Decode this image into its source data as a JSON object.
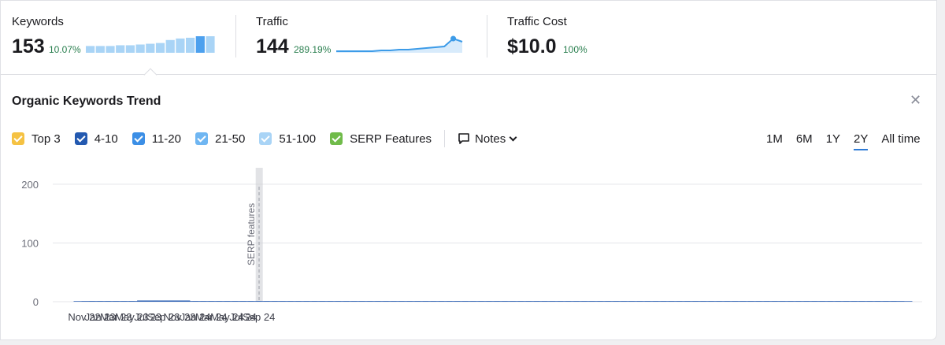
{
  "summary": {
    "keywords": {
      "label": "Keywords",
      "value": "153",
      "change": "10.07%",
      "spark": [
        9,
        9,
        9,
        10,
        10,
        11,
        12,
        13,
        17,
        19,
        20,
        22,
        22
      ]
    },
    "traffic": {
      "label": "Traffic",
      "value": "144",
      "change": "289.19%",
      "spark": [
        2,
        2,
        2,
        2,
        2,
        3,
        3,
        4,
        4,
        5,
        6,
        7,
        8,
        18,
        14
      ]
    },
    "traffic_cost": {
      "label": "Traffic Cost",
      "value": "$10.0",
      "change": "100%"
    }
  },
  "panel": {
    "title": "Organic Keywords Trend",
    "close_icon": "close-icon"
  },
  "filters": [
    {
      "label": "Top 3",
      "color": "#f5c243"
    },
    {
      "label": "4-10",
      "color": "#2359b0"
    },
    {
      "label": "11-20",
      "color": "#3c8fe6"
    },
    {
      "label": "21-50",
      "color": "#6fb6f2"
    },
    {
      "label": "51-100",
      "color": "#a9d4f6"
    },
    {
      "label": "SERP Features",
      "color": "#70bb4a"
    }
  ],
  "notes_label": "Notes",
  "ranges": [
    "1M",
    "6M",
    "1Y",
    "2Y",
    "All time"
  ],
  "active_range": "2Y",
  "chart_data": {
    "type": "bar",
    "stacked": true,
    "ylim": [
      0,
      220
    ],
    "yticks": [
      0,
      100,
      200
    ],
    "xtick_labels": [
      "Nov 22",
      "Jan 23",
      "Mar 23",
      "May 23",
      "Jul 23",
      "Sep 23",
      "Nov 23",
      "Jan 24",
      "Mar 24",
      "May 24",
      "Jul 24",
      "Sep 24"
    ],
    "annotation": "SERP features",
    "series": [
      {
        "name": "Top 3",
        "color": "#f5c243",
        "values": [
          0,
          0,
          0,
          0,
          0,
          0,
          0,
          0,
          0,
          0,
          0,
          0,
          0,
          0,
          0,
          0,
          0,
          0,
          0,
          0,
          0,
          0,
          0,
          0,
          0,
          0,
          0,
          0,
          0,
          0,
          0,
          0,
          0,
          0,
          0,
          0,
          0,
          0,
          0,
          0,
          0,
          0,
          0,
          0,
          0,
          0,
          0,
          0,
          0,
          0,
          0,
          0,
          0,
          0,
          0,
          0,
          0,
          0,
          0,
          0,
          0,
          0,
          0,
          0,
          0,
          0,
          0,
          0,
          0,
          0,
          0,
          0,
          0,
          0,
          0,
          0,
          0,
          0,
          0,
          0,
          0,
          0,
          0,
          0,
          0,
          0,
          0,
          0,
          0,
          0,
          0,
          0,
          0,
          0,
          0,
          0,
          0,
          0,
          0,
          0,
          0,
          0,
          0,
          0
        ]
      },
      {
        "name": "4-10",
        "color": "#2359b0",
        "values": [
          1,
          1,
          1,
          1,
          1,
          1,
          1,
          1,
          2,
          1,
          2,
          1,
          2,
          1,
          1,
          1,
          1,
          1,
          1,
          1,
          1,
          1,
          1,
          1,
          1,
          1,
          1,
          1,
          1,
          1,
          1,
          1,
          1,
          1,
          1,
          1,
          1,
          1,
          1,
          1,
          1,
          1,
          1,
          1,
          1,
          1,
          1,
          1,
          1,
          1,
          1,
          1,
          1,
          1,
          1,
          1,
          1,
          1,
          1,
          1,
          1,
          1,
          1,
          1,
          1,
          1,
          1,
          1,
          1,
          1,
          1,
          1,
          1,
          1,
          1,
          1,
          1,
          1,
          1,
          1,
          1,
          1,
          1,
          1,
          1,
          1,
          1,
          1,
          1,
          1,
          1,
          1,
          1,
          1,
          1,
          1,
          1,
          1,
          1,
          1,
          1,
          1,
          1,
          1
        ]
      },
      {
        "name": "11-20",
        "color": "#3c8fe6",
        "values": [
          0,
          0,
          0,
          0,
          0,
          0,
          0,
          0,
          0,
          0,
          0,
          0,
          0,
          0,
          0,
          0,
          0,
          0,
          0,
          0,
          0,
          0,
          0,
          0,
          0,
          0,
          0,
          0,
          0,
          0,
          0,
          0,
          0,
          0,
          0,
          0,
          0,
          0,
          0,
          0,
          0,
          0,
          0,
          0,
          0,
          0,
          0,
          0,
          0,
          0,
          0,
          0,
          0,
          0,
          0,
          0,
          0,
          0,
          0,
          0,
          0,
          0,
          0,
          0,
          0,
          0,
          0,
          0,
          0,
          0,
          0,
          0,
          0,
          0,
          0,
          0,
          0,
          0,
          0,
          0,
          0,
          0,
          0,
          0,
          0,
          0,
          0,
          0,
          0,
          0,
          0,
          0,
          0,
          0,
          0,
          0,
          0,
          0,
          0,
          0,
          0,
          0,
          0,
          0,
          0,
          0,
          0,
          0
        ]
      }
    ]
  }
}
